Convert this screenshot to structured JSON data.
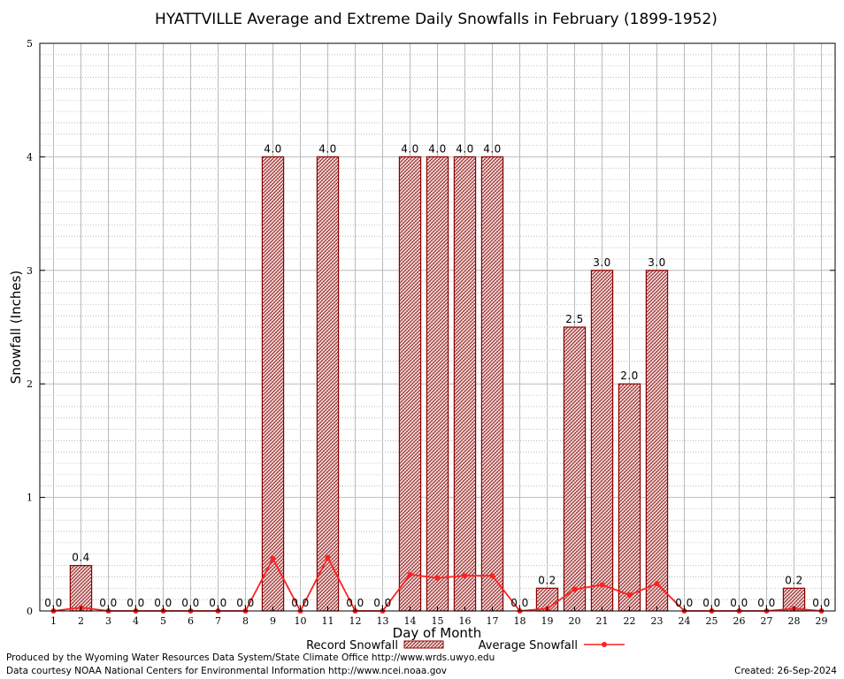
{
  "chart_data": {
    "type": "bar",
    "title": "HYATTVILLE Average and Extreme Daily Snowfalls in February (1899-1952)",
    "xlabel": "Day of Month",
    "ylabel": "Snowfall (Inches)",
    "ylim": [
      0,
      5
    ],
    "yticks": [
      0,
      1,
      2,
      3,
      4,
      5
    ],
    "grid": true,
    "legend_position": "bottom",
    "categories": [
      "1",
      "2",
      "3",
      "4",
      "5",
      "6",
      "7",
      "8",
      "9",
      "10",
      "11",
      "12",
      "13",
      "14",
      "15",
      "16",
      "17",
      "18",
      "19",
      "20",
      "21",
      "22",
      "23",
      "24",
      "25",
      "26",
      "27",
      "28",
      "29"
    ],
    "series": [
      {
        "name": "Record Snowfall",
        "type": "bar",
        "color": "#cc0000",
        "values": [
          0.0,
          0.4,
          0.0,
          0.0,
          0.0,
          0.0,
          0.0,
          0.0,
          4.0,
          0.0,
          4.0,
          0.0,
          0.0,
          4.0,
          4.0,
          4.0,
          4.0,
          0.0,
          0.2,
          2.5,
          3.0,
          2.0,
          3.0,
          0.0,
          0.0,
          0.0,
          0.0,
          0.2,
          0.0
        ],
        "labels": [
          "0.0",
          "0.4",
          "0.0",
          "0.0",
          "0.0",
          "0.0",
          "0.0",
          "0.0",
          "4.0",
          "0.0",
          "4.0",
          "0.0",
          "0.0",
          "4.0",
          "4.0",
          "4.0",
          "4.0",
          "0.0",
          "0.2",
          "2.5",
          "3.0",
          "2.0",
          "3.0",
          "0.0",
          "0.0",
          "0.0",
          "0.0",
          "0.2",
          "0.0"
        ]
      },
      {
        "name": "Average Snowfall",
        "type": "line",
        "color": "#ff2020",
        "values": [
          0.0,
          0.03,
          0.0,
          0.0,
          0.0,
          0.0,
          0.0,
          0.0,
          0.46,
          0.0,
          0.47,
          0.0,
          0.0,
          0.32,
          0.29,
          0.31,
          0.31,
          0.0,
          0.02,
          0.19,
          0.23,
          0.14,
          0.24,
          0.0,
          0.0,
          0.0,
          0.0,
          0.02,
          0.0
        ]
      }
    ]
  },
  "footer": {
    "credit_line_1": "Produced by the Wyoming Water Resources Data System/State Climate Office http://www.wrds.uwyo.edu",
    "credit_line_2": "Data courtesy NOAA National Centers for Environmental Information http://www.ncei.noaa.gov",
    "created": "Created:  26-Sep-2024"
  }
}
